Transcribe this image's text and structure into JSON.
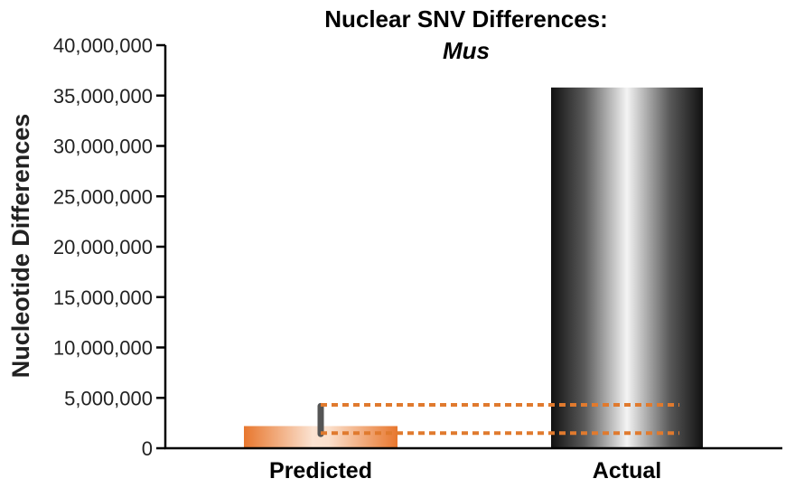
{
  "chart_data": {
    "type": "bar",
    "title": "Nuclear SNV Differences:",
    "subtitle": "Mus",
    "xlabel": "",
    "ylabel": "Nucleotide Differences",
    "categories": [
      "Predicted",
      "Actual"
    ],
    "values": [
      2200000,
      35800000
    ],
    "error_range": {
      "category": "Predicted",
      "low": 1600000,
      "high": 4000000
    },
    "dashed_band": {
      "low": 1500000,
      "high": 4300000,
      "color": "#e07a2e"
    },
    "ylim": [
      0,
      40000000
    ],
    "yticks": [
      "0",
      "5,000,000",
      "10,000,000",
      "15,000,000",
      "20,000,000",
      "25,000,000",
      "30,000,000",
      "35,000,000",
      "40,000,000"
    ],
    "ytick_values": [
      0,
      5000000,
      10000000,
      15000000,
      20000000,
      25000000,
      30000000,
      35000000,
      40000000
    ],
    "grid": false,
    "colors": {
      "predicted": "#e8772e",
      "actual": "#111111",
      "axis": "#000000"
    }
  }
}
